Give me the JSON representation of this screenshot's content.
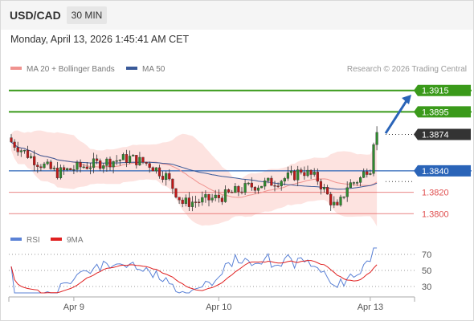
{
  "header": {
    "pair": "USD/CAD",
    "interval": "30 MIN"
  },
  "datetime": "Monday, April 13, 2026 1:45:41 AM CET",
  "legend": {
    "ma20": {
      "label": "MA 20 + Bollinger Bands",
      "color": "#f0938f"
    },
    "ma50": {
      "label": "MA 50",
      "color": "#3a5a99"
    }
  },
  "credit": "Research © 2026 Trading Central",
  "rsi_legend": {
    "rsi": {
      "label": "RSI",
      "color": "#5b82d6"
    },
    "ma9": {
      "label": "9MA",
      "color": "#e02020"
    }
  },
  "chart_data": [
    {
      "type": "candlestick",
      "title": "USD/CAD",
      "ylim": [
        1.3786,
        1.3929
      ],
      "x_ticks": [
        {
          "label": "Apr 9",
          "index": 19
        },
        {
          "label": "Apr 10",
          "index": 63
        },
        {
          "label": "Apr 13",
          "index": 109
        }
      ],
      "levels": [
        {
          "value": 1.3915,
          "label": "1.3915",
          "kind": "resistance",
          "color": "#3a9a1a"
        },
        {
          "value": 1.3895,
          "label": "1.3895",
          "kind": "resistance",
          "color": "#3a9a1a"
        },
        {
          "value": 1.3874,
          "label": "1.3874",
          "kind": "last",
          "color": "#333333"
        },
        {
          "value": 1.384,
          "label": "1.3840",
          "kind": "pivot",
          "color": "#2a64b8"
        },
        {
          "value": 1.382,
          "label": "1.3820",
          "kind": "support",
          "color": "#e05050"
        },
        {
          "value": 1.38,
          "label": "1.3800",
          "kind": "support",
          "color": "#e05050"
        }
      ],
      "arrow": {
        "from": 1.3875,
        "to": 1.3911,
        "color": "#2a64b8"
      },
      "series": [
        {
          "name": "MA 20 + Bollinger Bands",
          "values": []
        },
        {
          "name": "MA 50",
          "values": []
        }
      ]
    },
    {
      "type": "line",
      "title": "RSI",
      "ylim": [
        20,
        80
      ],
      "y_ticks": [
        30,
        50,
        70
      ],
      "series": [
        {
          "name": "RSI",
          "values": []
        },
        {
          "name": "9MA",
          "values": []
        }
      ]
    }
  ]
}
